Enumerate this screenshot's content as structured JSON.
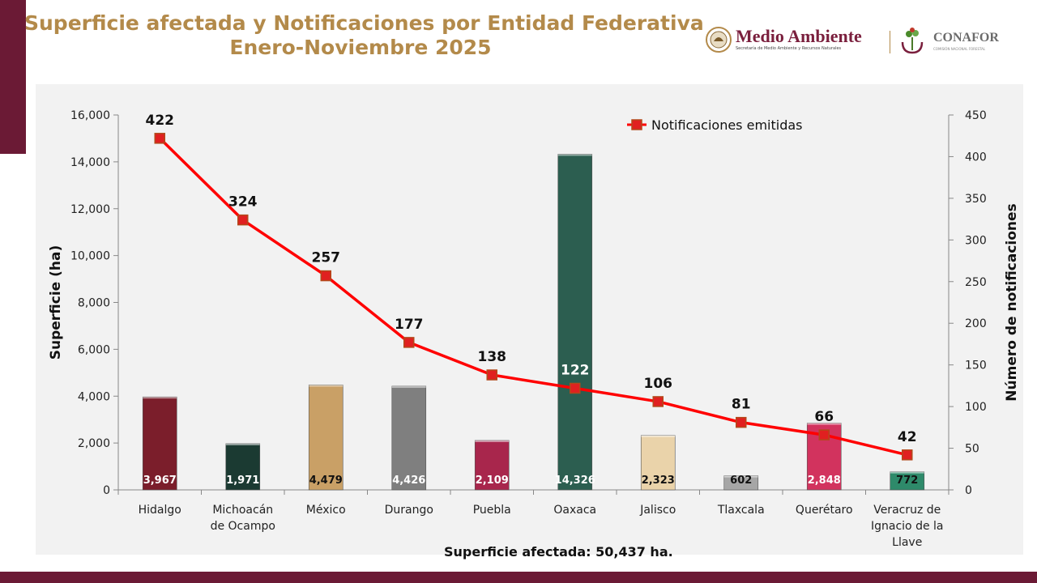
{
  "header": {
    "title_line1": "Superficie afectada y Notificaciones por Entidad Federativa",
    "title_line2": "Enero-Noviembre 2025"
  },
  "logos": {
    "medio_ambiente": "Medio Ambiente",
    "medio_ambiente_sub": "Secretaría de Medio Ambiente y Recursos Naturales",
    "conafor": "CONAFOR",
    "conafor_sub": "COMISIÓN NACIONAL FORESTAL"
  },
  "colors": {
    "brand": "#6b1a35",
    "title": "#b38a4a",
    "line": "#ff0000"
  },
  "footer": {
    "total_label": "Superficie afectada: 50,437 ha."
  },
  "chart_data": {
    "type": "bar",
    "categories": [
      "Hidalgo",
      "Michoacán de Ocampo",
      "México",
      "Durango",
      "Puebla",
      "Oaxaca",
      "Jalisco",
      "Tlaxcala",
      "Querétaro",
      "Veracruz de Ignacio de la Llave"
    ],
    "category_lines": [
      [
        "Hidalgo"
      ],
      [
        "Michoacán",
        "de Ocampo"
      ],
      [
        "México"
      ],
      [
        "Durango"
      ],
      [
        "Puebla"
      ],
      [
        "Oaxaca"
      ],
      [
        "Jalisco"
      ],
      [
        "Tlaxcala"
      ],
      [
        "Querétaro"
      ],
      [
        "Veracruz de",
        "Ignacio de la",
        "Llave"
      ]
    ],
    "series": [
      {
        "type": "bar",
        "axis": "left",
        "values": [
          3967,
          1971,
          4479,
          4426,
          2109,
          14326,
          2323,
          602,
          2848,
          772
        ],
        "value_labels": [
          "3,967",
          "1,971",
          "4,479",
          "4,426",
          "2,109",
          "14,326",
          "2,323",
          "602",
          "2,848",
          "772"
        ],
        "colors": [
          "#7b1e2b",
          "#1b3a32",
          "#c9a066",
          "#7f7f7f",
          "#a8264c",
          "#2c5e50",
          "#ead3aa",
          "#a6a6a6",
          "#d2335e",
          "#2e8a6a"
        ],
        "label_colors": [
          "#ffffff",
          "#ffffff",
          "#111111",
          "#ffffff",
          "#ffffff",
          "#ffffff",
          "#111111",
          "#111111",
          "#ffffff",
          "#111111"
        ]
      },
      {
        "name": "Notificaciones emitidas",
        "type": "line",
        "axis": "right",
        "values": [
          422,
          324,
          257,
          177,
          138,
          122,
          106,
          81,
          66,
          42
        ],
        "color": "#ff0000"
      }
    ],
    "ylabel": "Superficie (ha)",
    "y2label": "Número de notificaciones",
    "ylim": [
      0,
      16000
    ],
    "yticks": [
      "0",
      "2,000",
      "4,000",
      "6,000",
      "8,000",
      "10,000",
      "12,000",
      "14,000",
      "16,000"
    ],
    "y2lim": [
      0,
      450
    ],
    "y2ticks": [
      "0",
      "50",
      "100",
      "150",
      "200",
      "250",
      "300",
      "350",
      "400",
      "450"
    ],
    "legend_position": "top-right",
    "grid": false
  }
}
